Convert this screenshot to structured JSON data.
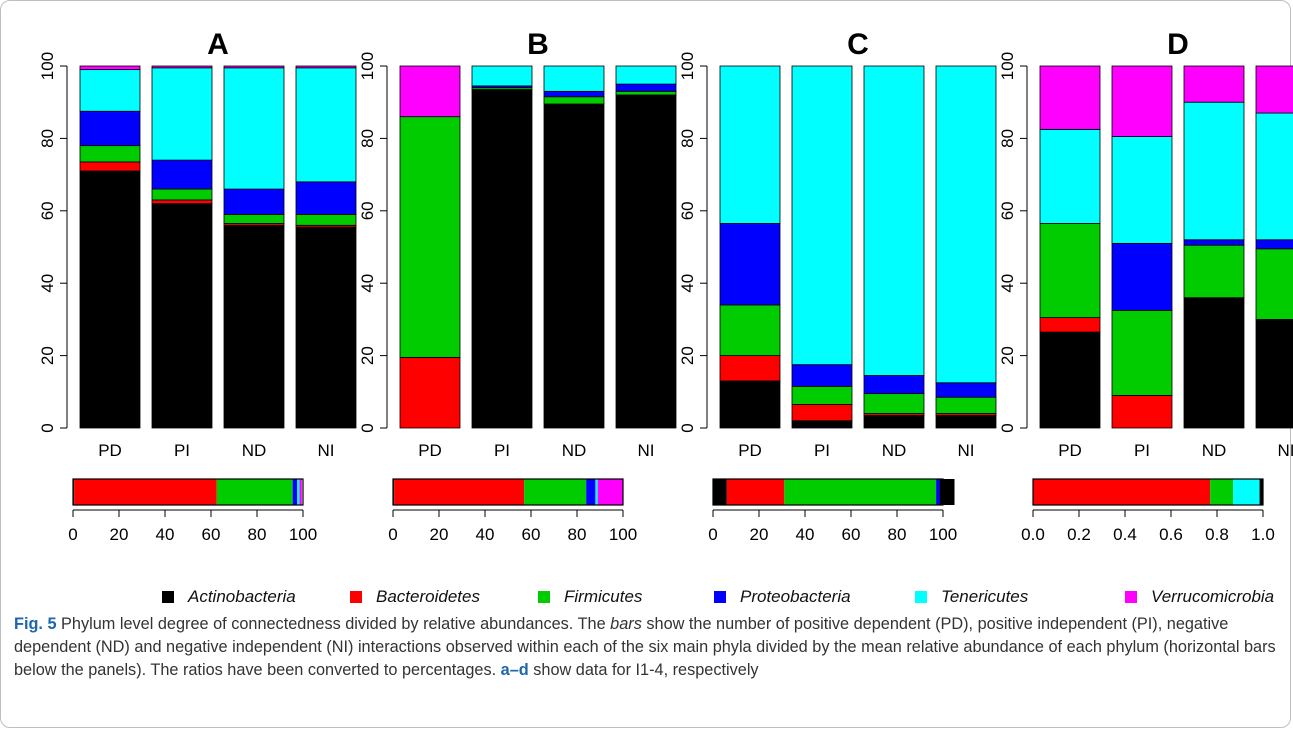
{
  "colors": {
    "Actinobacteria": "#000000",
    "Bacteroidetes": "#ff0000",
    "Firmicutes": "#00cc00",
    "Proteobacteria": "#0000ff",
    "Tenericutes": "#00ffff",
    "Verrucomicrobia": "#ff00ff"
  },
  "legend": [
    "Actinobacteria",
    "Bacteroidetes",
    "Firmicutes",
    "Proteobacteria",
    "Tenericutes",
    "Verrucomicrobia"
  ],
  "chart_data": [
    {
      "type": "bar",
      "stacked": true,
      "title": "A",
      "categories": [
        "PD",
        "PI",
        "ND",
        "NI"
      ],
      "ylim": [
        0,
        100
      ],
      "yticks": [
        "0",
        "20",
        "40",
        "60",
        "80",
        "100"
      ],
      "series": [
        {
          "name": "Actinobacteria",
          "values": [
            71,
            62,
            56,
            55.5
          ]
        },
        {
          "name": "Bacteroidetes",
          "values": [
            2.5,
            1,
            0.5,
            0.5
          ]
        },
        {
          "name": "Firmicutes",
          "values": [
            4.5,
            3,
            2.5,
            3
          ]
        },
        {
          "name": "Proteobacteria",
          "values": [
            9.5,
            8,
            7,
            9
          ]
        },
        {
          "name": "Tenericutes",
          "values": [
            11.5,
            25.5,
            33.5,
            31.5
          ]
        },
        {
          "name": "Verrucomicrobia",
          "values": [
            1,
            0.5,
            0.5,
            0.5
          ]
        }
      ],
      "hbar": {
        "xlim": [
          0,
          100
        ],
        "xticks": [
          "0",
          "20",
          "40",
          "60",
          "80",
          "100"
        ],
        "segments": [
          {
            "name": "Actinobacteria",
            "value": 0.5
          },
          {
            "name": "Bacteroidetes",
            "value": 62
          },
          {
            "name": "Firmicutes",
            "value": 33
          },
          {
            "name": "Proteobacteria",
            "value": 2
          },
          {
            "name": "Tenericutes",
            "value": 1
          },
          {
            "name": "Verrucomicrobia",
            "value": 1
          }
        ]
      }
    },
    {
      "type": "bar",
      "stacked": true,
      "title": "B",
      "categories": [
        "PD",
        "PI",
        "ND",
        "NI"
      ],
      "ylim": [
        0,
        100
      ],
      "yticks": [
        "0",
        "20",
        "40",
        "60",
        "80",
        "100"
      ],
      "series": [
        {
          "name": "Actinobacteria",
          "values": [
            0,
            93.5,
            89.5,
            92
          ]
        },
        {
          "name": "Bacteroidetes",
          "values": [
            19.5,
            0,
            0,
            0
          ]
        },
        {
          "name": "Firmicutes",
          "values": [
            66.5,
            0.5,
            2,
            1
          ]
        },
        {
          "name": "Proteobacteria",
          "values": [
            0,
            0.5,
            1.5,
            2
          ]
        },
        {
          "name": "Tenericutes",
          "values": [
            0,
            5.5,
            7,
            5
          ]
        },
        {
          "name": "Verrucomicrobia",
          "values": [
            14,
            0,
            0,
            0
          ]
        }
      ],
      "hbar": {
        "xlim": [
          0,
          100
        ],
        "xticks": [
          "0",
          "20",
          "40",
          "60",
          "80",
          "100"
        ],
        "segments": [
          {
            "name": "Actinobacteria",
            "value": 0.5
          },
          {
            "name": "Bacteroidetes",
            "value": 56.5
          },
          {
            "name": "Firmicutes",
            "value": 27
          },
          {
            "name": "Proteobacteria",
            "value": 4
          },
          {
            "name": "Tenericutes",
            "value": 1
          },
          {
            "name": "Verrucomicrobia",
            "value": 11
          }
        ]
      }
    },
    {
      "type": "bar",
      "stacked": true,
      "title": "C",
      "categories": [
        "PD",
        "PI",
        "ND",
        "NI"
      ],
      "ylim": [
        0,
        100
      ],
      "yticks": [
        "0",
        "20",
        "40",
        "60",
        "80",
        "100"
      ],
      "series": [
        {
          "name": "Actinobacteria",
          "values": [
            13,
            2,
            3.5,
            3.5
          ]
        },
        {
          "name": "Bacteroidetes",
          "values": [
            7,
            4.5,
            0.5,
            0.5
          ]
        },
        {
          "name": "Firmicutes",
          "values": [
            14,
            5,
            5.5,
            4.5
          ]
        },
        {
          "name": "Proteobacteria",
          "values": [
            22.5,
            6,
            5,
            4
          ]
        },
        {
          "name": "Tenericutes",
          "values": [
            43.5,
            82.5,
            85.5,
            87.5
          ]
        },
        {
          "name": "Verrucomicrobia",
          "values": [
            0,
            0,
            0,
            0
          ]
        }
      ],
      "hbar": {
        "xlim": [
          0,
          100
        ],
        "xticks": [
          "0",
          "20",
          "40",
          "60",
          "80",
          "100"
        ],
        "segments": [
          {
            "name": "Actinobacteria",
            "value": 6
          },
          {
            "name": "Bacteroidetes",
            "value": 25
          },
          {
            "name": "Firmicutes",
            "value": 66
          },
          {
            "name": "Proteobacteria",
            "value": 1.5
          },
          {
            "name": "Tenericutes",
            "value": 0
          },
          {
            "name": "Actinobacteria",
            "value": 6.5
          }
        ]
      }
    },
    {
      "type": "bar",
      "stacked": true,
      "title": "D",
      "categories": [
        "PD",
        "PI",
        "ND",
        "NI"
      ],
      "ylim": [
        0,
        100
      ],
      "yticks": [
        "0",
        "20",
        "40",
        "60",
        "80",
        "100"
      ],
      "series": [
        {
          "name": "Actinobacteria",
          "values": [
            26.5,
            0,
            36,
            30
          ]
        },
        {
          "name": "Bacteroidetes",
          "values": [
            4,
            9,
            0,
            0
          ]
        },
        {
          "name": "Firmicutes",
          "values": [
            26,
            23.5,
            14.5,
            19.5
          ]
        },
        {
          "name": "Proteobacteria",
          "values": [
            0,
            18.5,
            1.5,
            2.5
          ]
        },
        {
          "name": "Tenericutes",
          "values": [
            26,
            29.5,
            38,
            35
          ]
        },
        {
          "name": "Verrucomicrobia",
          "values": [
            17.5,
            19.5,
            10,
            13
          ]
        }
      ],
      "hbar": {
        "xlim": [
          0,
          1
        ],
        "xticks": [
          "0.0",
          "0.2",
          "0.4",
          "0.6",
          "0.8",
          "1.0"
        ],
        "segments": [
          {
            "name": "Actinobacteria",
            "value": 0
          },
          {
            "name": "Bacteroidetes",
            "value": 0.77
          },
          {
            "name": "Firmicutes",
            "value": 0.1
          },
          {
            "name": "Proteobacteria",
            "value": 0
          },
          {
            "name": "Tenericutes",
            "value": 0.115
          },
          {
            "name": "Actinobacteria",
            "value": 0.015
          }
        ]
      }
    }
  ],
  "caption": {
    "fig_label": "Fig. 5",
    "part1": " Phylum level degree of connectedness divided by relative abundances. The ",
    "bars_word": "bars",
    "part2": " show the number of positive dependent (PD), positive independent (PI), negative dependent (ND) and negative independent (NI) interactions observed within each of the six main phyla divided by the mean relative abundance of each phylum (horizontal bars below the panels). The ratios have been converted to percentages. ",
    "panel_ref": "a–d",
    "part3": " show data for I1-4, respectively"
  }
}
